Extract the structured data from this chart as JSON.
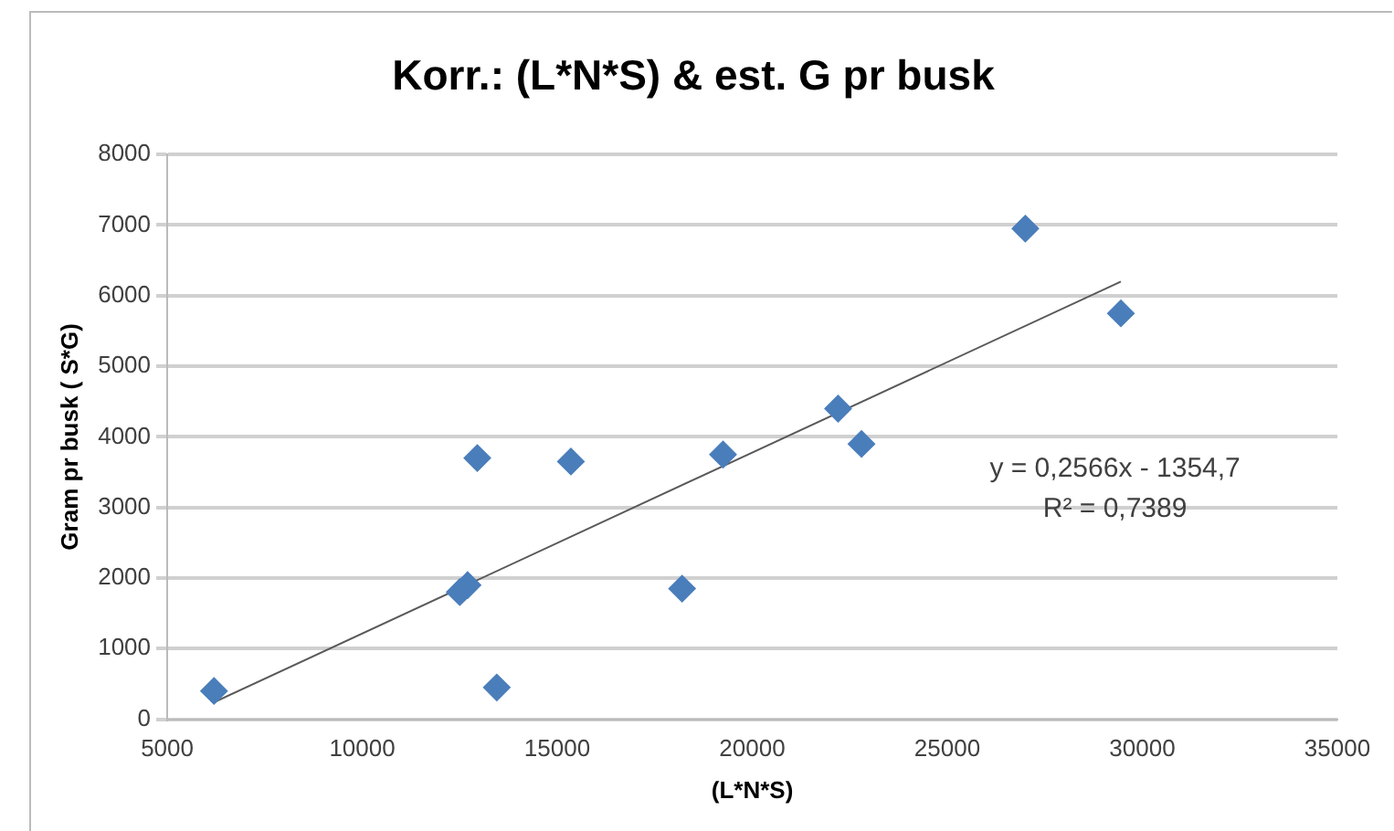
{
  "chart_data": {
    "type": "scatter",
    "title": "Korr.: (L*N*S) & est. G pr busk",
    "xlabel": "(L*N*S)",
    "ylabel": "Gram pr busk ( S*G)",
    "xlim": [
      5000,
      35000
    ],
    "xticks": [
      5000,
      10000,
      15000,
      20000,
      25000,
      30000,
      35000
    ],
    "ylim": [
      0,
      8000
    ],
    "yticks": [
      0,
      1000,
      2000,
      3000,
      4000,
      5000,
      6000,
      7000,
      8000
    ],
    "grid": "y",
    "legend": false,
    "marker": "diamond",
    "series": [
      {
        "color": "#4a7ebb",
        "x": [
          6200,
          12500,
          12700,
          12950,
          13450,
          15350,
          18200,
          19250,
          22200,
          22800,
          27000,
          29450
        ],
        "values": [
          400,
          1800,
          1900,
          3700,
          450,
          3650,
          1850,
          3750,
          4400,
          3900,
          6950,
          5750
        ]
      },
      {
        "type": "line",
        "color": "#595959",
        "x": [
          6200,
          29450
        ],
        "values": [
          240,
          6200
        ],
        "marker": "none"
      }
    ],
    "annotations": [
      "y = 0,2566x - 1354,7",
      "R² = 0,7389"
    ]
  }
}
